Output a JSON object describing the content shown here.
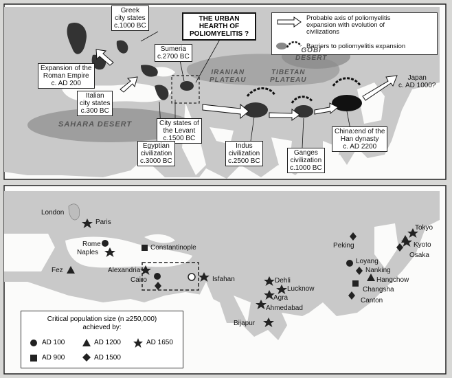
{
  "top_map": {
    "title": "THE URBAN\nHEARTH OF\nPOLIOMYELITIS ?",
    "legend": {
      "axis_label": "Probable axis of poliomyelitis\nexpansion with evolution of\ncivilizations",
      "barrier_label": "Barriers to poliomyelitis expansion"
    },
    "regions": {
      "gobi": "GOBI\nDESERT",
      "iranian": "IRANIAN\nPLATEAU",
      "tibetan": "TIBETAN\nPLATEAU",
      "sahara": "SAHARA DESERT"
    },
    "labels": {
      "greek": "Greek\ncity states\nc.1000 BC",
      "sumeria": "Sumeria\nc.2700 BC",
      "roman": "Expansion of the\nRoman Empire\nc. AD 200",
      "italian": "Italian\ncity states\nc.300 BC",
      "levant": "City states of\nthe Levant\nc.1500 BC",
      "egyptian": "Egyptian\ncivilization\nc.3000 BC",
      "indus": "Indus\ncivilization\nc.2500 BC",
      "ganges": "Ganges\ncivilization\nc.1000 BC",
      "china": "China:end of the\nHan dynasty\nc. AD 2200",
      "japan": "Japan\nc. AD 1000?"
    }
  },
  "bottom_map": {
    "cities": {
      "london": "London",
      "paris": "Paris",
      "rome": "Rome",
      "naples": "Naples",
      "constantinople": "Constantinople",
      "fez": "Fez",
      "alexandria": "Alexandria",
      "cairo": "Cairo",
      "isfahan": "Isfahan",
      "dehli": "Dehli",
      "lucknow": "Lucknow",
      "agra": "Agra",
      "ahmedabad": "Ahmedabad",
      "bijapur": "Bijapur",
      "peking": "Peking",
      "loyang": "Loyang",
      "nanking": "Nanking",
      "hangchow": "Hangchow",
      "changsha": "Changsha",
      "canton": "Canton",
      "tokyo": "Tokyo",
      "kyoto": "Kyoto",
      "osaka": "Osaka"
    },
    "legend": {
      "heading": "Critical population size (n ≥250,000)\nachieved by:",
      "ad100": "AD 100",
      "ad900": "AD 900",
      "ad1200": "AD 1200",
      "ad1500": "AD 1500",
      "ad1650": "AD 1650"
    },
    "symbol_meaning": {
      "circle": "AD 100",
      "square": "AD 900",
      "triangle": "AD 1200",
      "diamond": "AD 1500",
      "star": "AD 1650"
    }
  }
}
